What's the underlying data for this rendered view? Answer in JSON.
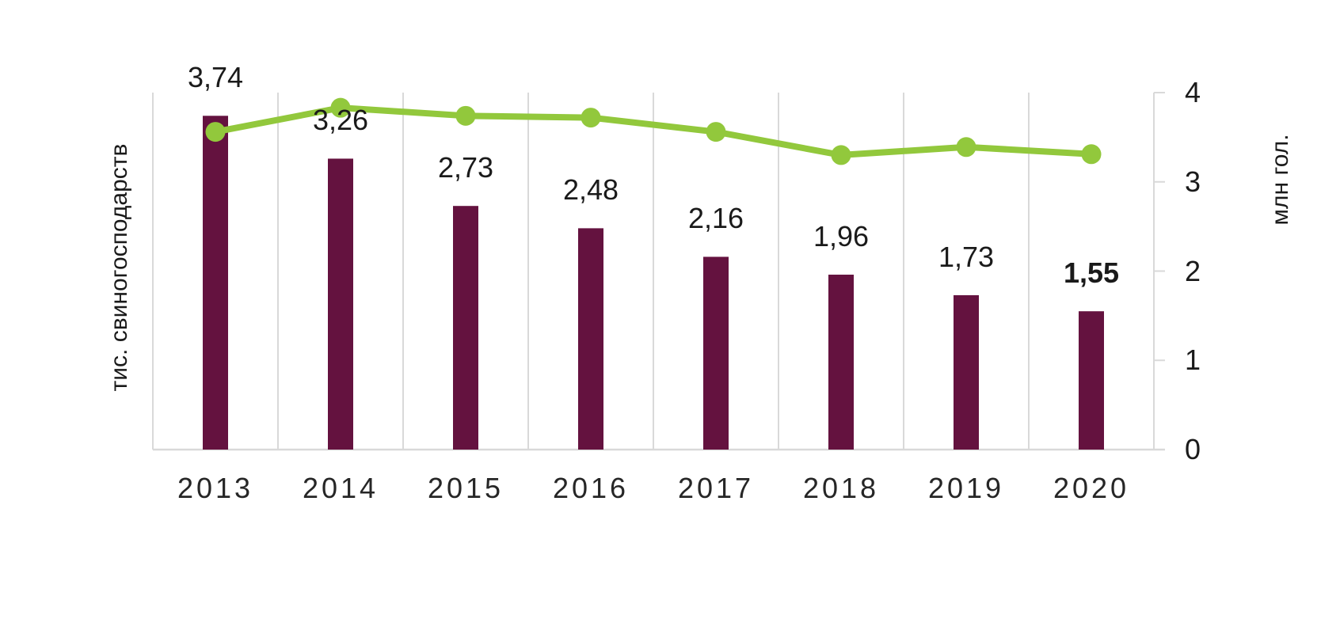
{
  "chart_data": {
    "type": "combo",
    "subtype": "bar + line, dual axis",
    "categories": [
      "2013",
      "2014",
      "2015",
      "2016",
      "2017",
      "2018",
      "2019",
      "2020"
    ],
    "series": [
      {
        "name": "тис. свиногосподарств",
        "chart_type": "bar",
        "axis": "left",
        "values": [
          3.74,
          3.26,
          2.73,
          2.48,
          2.16,
          1.96,
          1.73,
          1.55
        ],
        "labels": [
          "3,74",
          "3,26",
          "2,73",
          "2,48",
          "2,16",
          "1,96",
          "1,73",
          "1,55"
        ],
        "color": "#64123F"
      },
      {
        "name": "млн гол.",
        "chart_type": "line",
        "axis": "right",
        "values": [
          3.56,
          3.83,
          3.74,
          3.72,
          3.56,
          3.3,
          3.39,
          3.31
        ],
        "color": "#92C83C"
      }
    ],
    "left_axis": {
      "title": "тис. свиногосподарств",
      "tick_labels_visible": false,
      "range": [
        0,
        4
      ]
    },
    "right_axis": {
      "title": "млн гол.",
      "tick_labels": [
        "4",
        "3",
        "2",
        "1",
        "0"
      ],
      "tick_values": [
        4,
        3,
        2,
        1,
        0
      ],
      "range": [
        0,
        4
      ]
    },
    "grid": {
      "vertical_category_lines": true,
      "horizontal_lines": false,
      "color": "#D9D9D9"
    },
    "style_notes": {
      "last_bar_label_bold": true,
      "marker_shape": "circle"
    }
  }
}
